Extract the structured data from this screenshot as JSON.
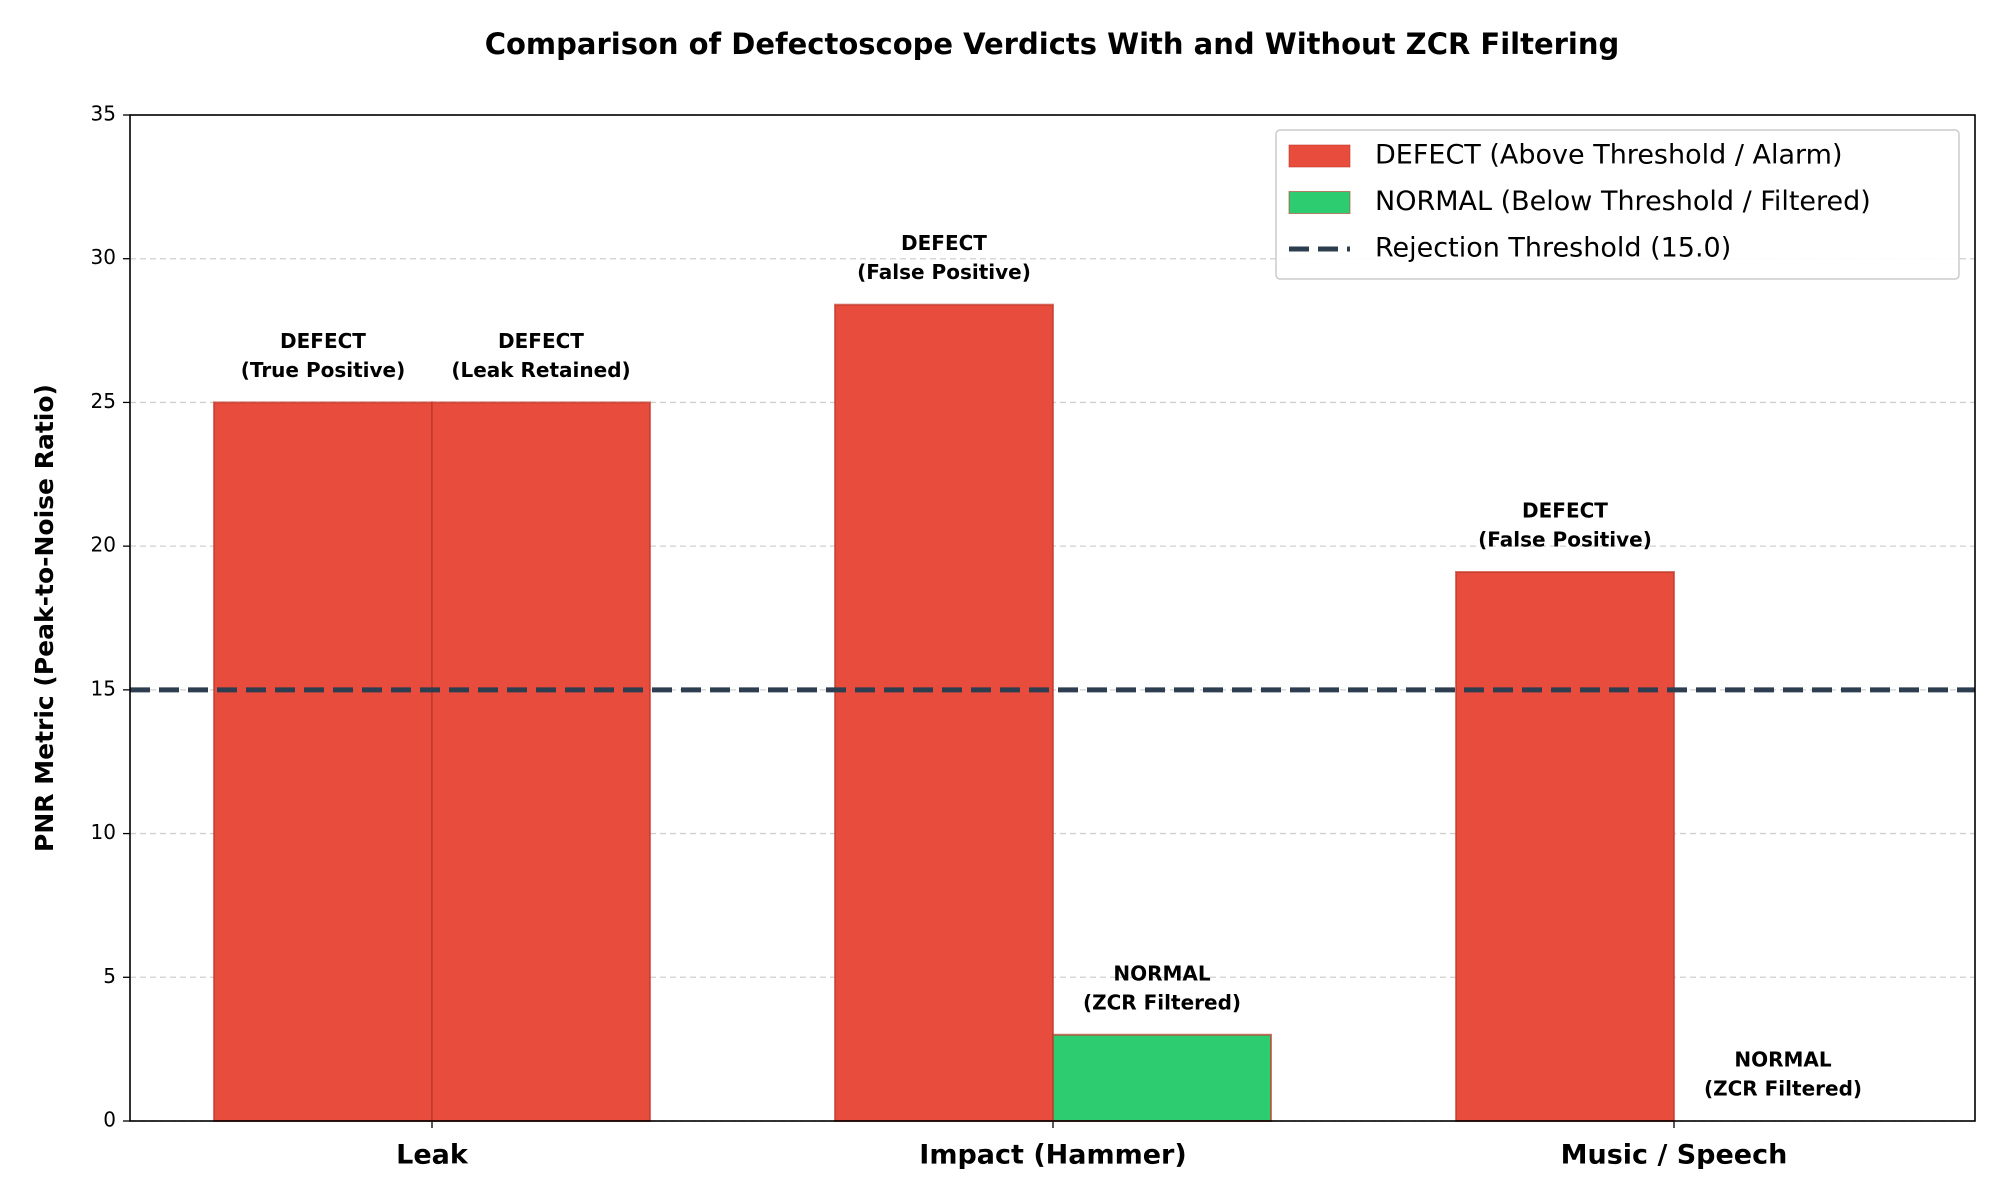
{
  "chart_data": {
    "type": "bar",
    "title": "Comparison of Defectoscope Verdicts With and Without ZCR Filtering",
    "y_label": "PNR Metric (Peak-to-Noise Ratio)",
    "categories": [
      "Leak",
      "Impact (Hammer)",
      "Music / Speech"
    ],
    "series": [
      {
        "values": [
          25,
          28.4,
          19.1
        ],
        "colors": [
          "#e74c3c",
          "#e74c3c",
          "#e74c3c"
        ],
        "bar_labels": [
          [
            "DEFECT",
            "(True Positive)"
          ],
          [
            "DEFECT",
            "(False Positive)"
          ],
          [
            "DEFECT",
            "(False Positive)"
          ]
        ]
      },
      {
        "values": [
          25,
          3,
          0
        ],
        "colors": [
          "#e74c3c",
          "#2ecc71",
          "#2ecc71"
        ],
        "bar_labels": [
          [
            "DEFECT",
            "(Leak Retained)"
          ],
          [
            "NORMAL",
            "(ZCR Filtered)"
          ],
          [
            "NORMAL",
            "(ZCR Filtered)"
          ]
        ]
      }
    ],
    "threshold": {
      "value": 15,
      "label": "Rejection Threshold (15.0)",
      "color": "#2c3e50"
    },
    "legend": [
      {
        "label": "DEFECT (Above Threshold / Alarm)",
        "color": "#e74c3c"
      },
      {
        "label": "NORMAL (Below Threshold / Filtered)",
        "color": "#2ecc71"
      }
    ],
    "legend_position": "upper right",
    "ylim": [
      0,
      35
    ],
    "yticks": [
      0,
      5,
      10,
      15,
      20,
      25,
      30,
      35
    ],
    "grid": true
  }
}
